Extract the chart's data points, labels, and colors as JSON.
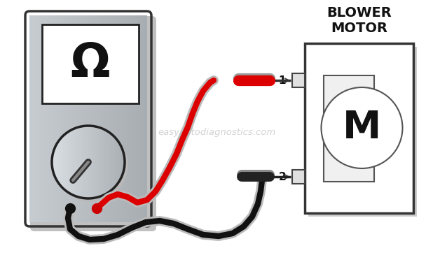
{
  "bg_color": "#ffffff",
  "meter_body_color_l": "#c8cdd2",
  "meter_body_color_r": "#9aa0a8",
  "meter_outline_color": "#333333",
  "meter_screen_bg": "#ffffff",
  "meter_screen_outline": "#222222",
  "omega_color": "#111111",
  "dial_color_l": "#d8dde0",
  "dial_color_r": "#a0a8b0",
  "dial_outline": "#222222",
  "needle_color": "#444444",
  "red_wire_color": "#dd0000",
  "black_wire_color": "#111111",
  "shadow_color": "#cccccc",
  "probe_red_color": "#dd0000",
  "probe_black_color": "#222222",
  "motor_box_color": "#ffffff",
  "motor_box_outline": "#333333",
  "motor_label": "M",
  "blower_label_line1": "BLOWER",
  "blower_label_line2": "MOTOR",
  "watermark": "easyautodiagnostics.com",
  "pin1_label": "1",
  "pin2_label": "2"
}
